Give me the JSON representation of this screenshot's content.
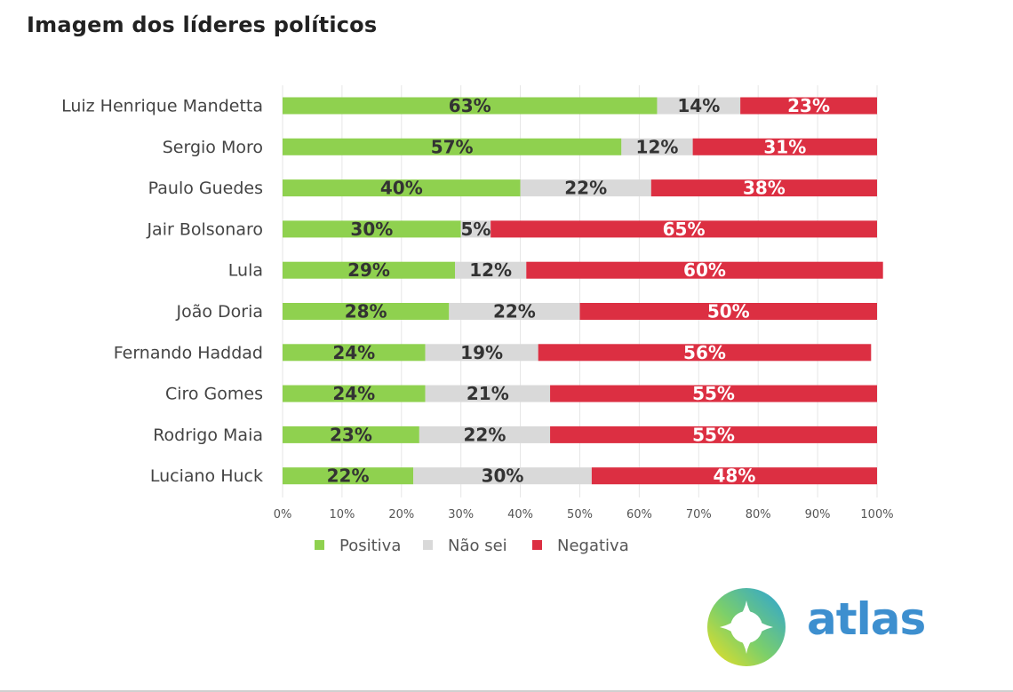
{
  "title": "Imagem dos líderes políticos",
  "logo": {
    "text": "atlas"
  },
  "colors": {
    "positiva": "#8fd14f",
    "nao_sei": "#d9d9d9",
    "negativa": "#dc2f42"
  },
  "chart_data": {
    "type": "bar",
    "orientation": "horizontal",
    "stacked": true,
    "title": "Imagem dos líderes políticos",
    "categories": [
      "Luiz Henrique Mandetta",
      "Sergio Moro",
      "Paulo Guedes",
      "Jair Bolsonaro",
      "Lula",
      "João Doria",
      "Fernando Haddad",
      "Ciro Gomes",
      "Rodrigo Maia",
      "Luciano Huck"
    ],
    "series": [
      {
        "name": "Positiva",
        "values": [
          63,
          57,
          40,
          30,
          29,
          28,
          24,
          24,
          23,
          22
        ]
      },
      {
        "name": "Não sei",
        "values": [
          14,
          12,
          22,
          5,
          12,
          22,
          19,
          21,
          22,
          30
        ]
      },
      {
        "name": "Negativa",
        "values": [
          23,
          31,
          38,
          65,
          60,
          50,
          56,
          55,
          55,
          48
        ]
      }
    ],
    "xlim": [
      0,
      100
    ],
    "xticks": [
      "0%",
      "10%",
      "20%",
      "30%",
      "40%",
      "50%",
      "60%",
      "70%",
      "80%",
      "90%",
      "100%"
    ],
    "grid": true,
    "legend": "bottom-left"
  }
}
